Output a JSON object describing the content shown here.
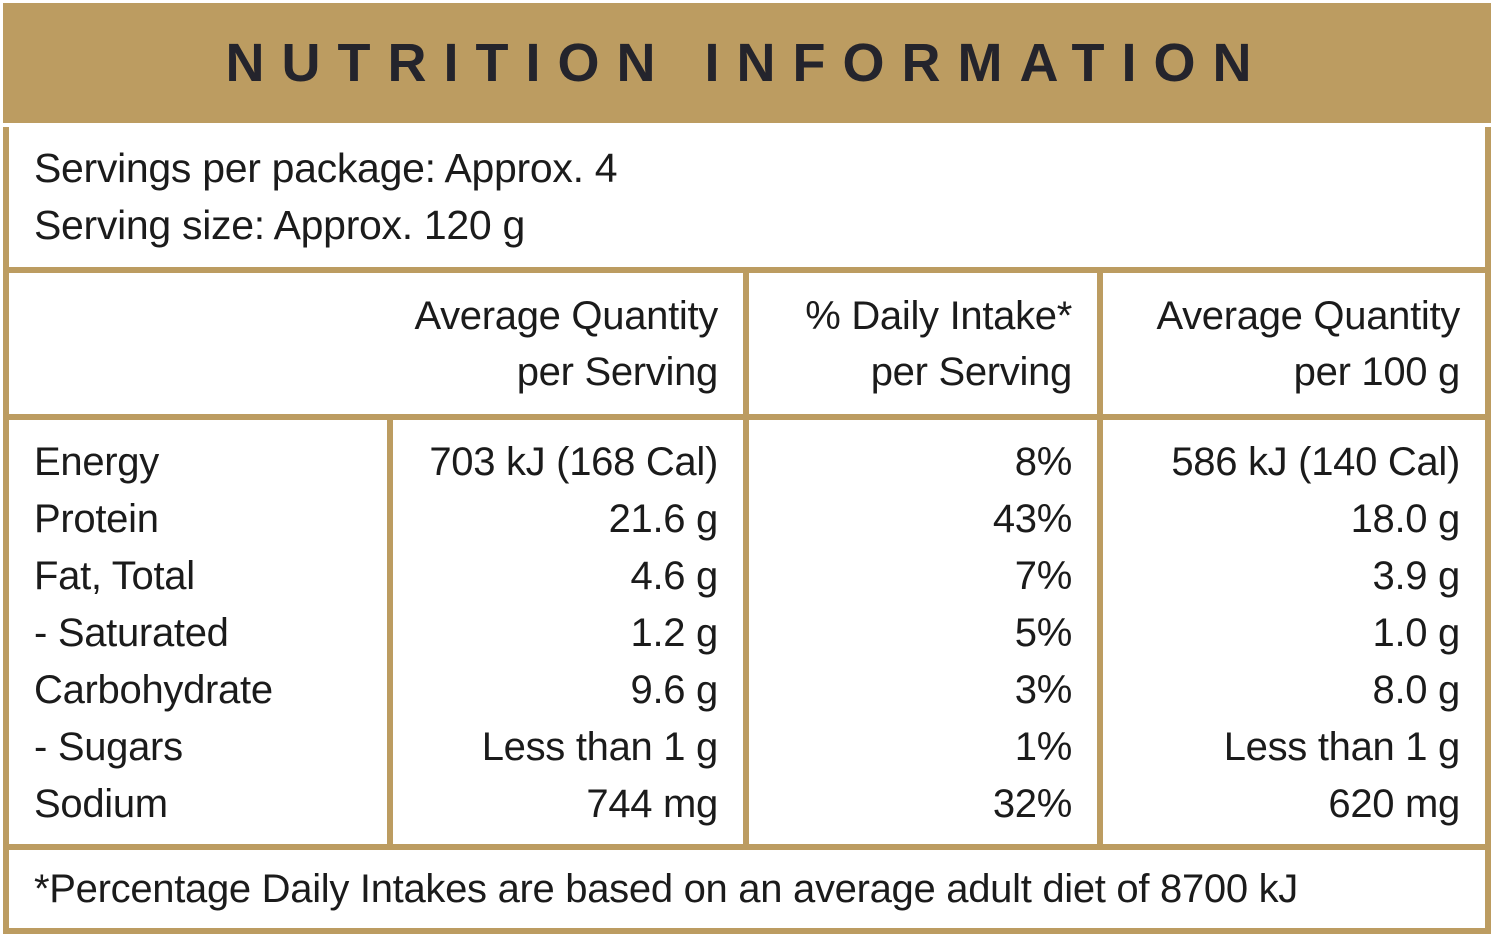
{
  "title": "NUTRITION INFORMATION",
  "serving_info": {
    "servings_per_package": "Servings per package: Approx. 4",
    "serving_size": "Serving size: Approx. 120 g"
  },
  "table": {
    "headers": {
      "per_serving": "Average Quantity\nper Serving",
      "daily_intake": "% Daily Intake*\nper Serving",
      "per_100g": "Average Quantity\nper 100 g"
    },
    "rows": [
      {
        "label": "Energy",
        "per_serving": "703 kJ (168 Cal)",
        "daily_intake": "8%",
        "per_100g": "586 kJ (140 Cal)"
      },
      {
        "label": "Protein",
        "per_serving": "21.6 g",
        "daily_intake": "43%",
        "per_100g": "18.0 g"
      },
      {
        "label": "Fat, Total",
        "per_serving": "4.6 g",
        "daily_intake": "7%",
        "per_100g": "3.9 g"
      },
      {
        "label": "- Saturated",
        "per_serving": "1.2 g",
        "daily_intake": "5%",
        "per_100g": "1.0 g"
      },
      {
        "label": "Carbohydrate",
        "per_serving": "9.6 g",
        "daily_intake": "3%",
        "per_100g": "8.0 g"
      },
      {
        "label": "- Sugars",
        "per_serving": "Less than 1 g",
        "daily_intake": "1%",
        "per_100g": "Less than 1 g"
      },
      {
        "label": "Sodium",
        "per_serving": "744 mg",
        "daily_intake": "32%",
        "per_100g": "620 mg"
      }
    ]
  },
  "footnote": "*Percentage Daily Intakes are based on an average adult diet of 8700 kJ",
  "colors": {
    "gold": "#BC9C61",
    "body_text": "#1B1B1B",
    "title_text": "#24242C",
    "background": "#FFFFFF"
  }
}
